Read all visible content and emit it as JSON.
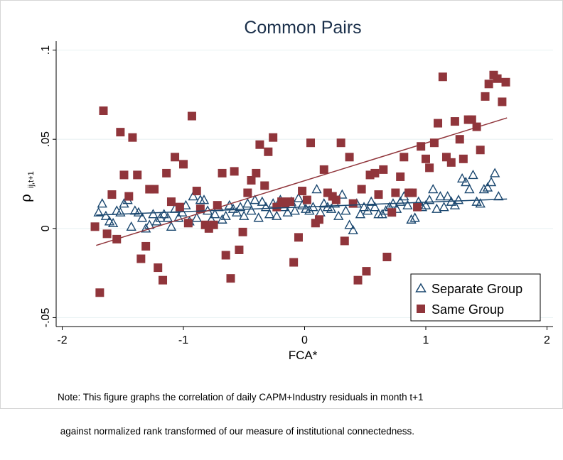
{
  "chart_data": {
    "type": "scatter",
    "title": "Common Pairs",
    "xlabel": "FCA*",
    "ylabel_main": "ρ",
    "ylabel_sub": "ij,t+1",
    "xlim": [
      -2.05,
      2.05
    ],
    "ylim": [
      -0.055,
      0.105
    ],
    "xticks": [
      "-2",
      "-1",
      "0",
      "1",
      "2"
    ],
    "xtick_values": [
      -2,
      -1,
      0,
      1,
      2
    ],
    "yticks": [
      ".1",
      ".05",
      "0",
      "-.05"
    ],
    "ytick_values": [
      0.1,
      0.05,
      0,
      -0.05
    ],
    "grid": true,
    "legend_placement": "bottom-right",
    "series": [
      {
        "name": "Separate Group",
        "marker": "triangle",
        "color": "#1a476f",
        "points": [
          [
            -1.7,
            0.009
          ],
          [
            -1.67,
            0.014
          ],
          [
            -1.64,
            0.007
          ],
          [
            -1.61,
            0.004
          ],
          [
            -1.58,
            0.003
          ],
          [
            -1.55,
            0.01
          ],
          [
            -1.52,
            0.009
          ],
          [
            -1.49,
            0.014
          ],
          [
            -1.46,
            0.016
          ],
          [
            -1.43,
            0.001
          ],
          [
            -1.4,
            0.01
          ],
          [
            -1.37,
            0.009
          ],
          [
            -1.34,
            0.006
          ],
          [
            -1.31,
            0.0
          ],
          [
            -1.28,
            0.002
          ],
          [
            -1.25,
            0.008
          ],
          [
            -1.22,
            0.004
          ],
          [
            -1.19,
            0.006
          ],
          [
            -1.16,
            0.008
          ],
          [
            -1.13,
            0.006
          ],
          [
            -1.1,
            0.001
          ],
          [
            -1.07,
            0.011
          ],
          [
            -1.04,
            0.006
          ],
          [
            -1.01,
            0.009
          ],
          [
            -0.98,
            0.013
          ],
          [
            -0.95,
            0.004
          ],
          [
            -0.92,
            0.018
          ],
          [
            -0.89,
            0.006
          ],
          [
            -0.86,
            0.016
          ],
          [
            -0.83,
            0.016
          ],
          [
            -0.8,
            0.01
          ],
          [
            -0.77,
            0.005
          ],
          [
            -0.74,
            0.008
          ],
          [
            -0.71,
            0.012
          ],
          [
            -0.68,
            0.005
          ],
          [
            -0.65,
            0.007
          ],
          [
            -0.62,
            0.013
          ],
          [
            -0.59,
            0.011
          ],
          [
            -0.56,
            0.009
          ],
          [
            -0.53,
            0.012
          ],
          [
            -0.5,
            0.007
          ],
          [
            -0.47,
            0.014
          ],
          [
            -0.44,
            0.01
          ],
          [
            -0.41,
            0.016
          ],
          [
            -0.38,
            0.006
          ],
          [
            -0.35,
            0.015
          ],
          [
            -0.32,
            0.012
          ],
          [
            -0.29,
            0.008
          ],
          [
            -0.26,
            0.014
          ],
          [
            -0.23,
            0.007
          ],
          [
            -0.2,
            0.016
          ],
          [
            -0.17,
            0.012
          ],
          [
            -0.14,
            0.009
          ],
          [
            -0.11,
            0.015
          ],
          [
            -0.08,
            0.01
          ],
          [
            -0.05,
            0.017
          ],
          [
            -0.02,
            0.013
          ],
          [
            0.01,
            0.011
          ],
          [
            0.04,
            0.01
          ],
          [
            0.07,
            0.012
          ],
          [
            0.1,
            0.022
          ],
          [
            0.13,
            0.009
          ],
          [
            0.16,
            0.014
          ],
          [
            0.19,
            0.012
          ],
          [
            0.22,
            0.011
          ],
          [
            0.25,
            0.014
          ],
          [
            0.28,
            0.007
          ],
          [
            0.31,
            0.019
          ],
          [
            0.34,
            0.01
          ],
          [
            0.37,
            0.002
          ],
          [
            0.4,
            -0.001
          ],
          [
            0.43,
            0.014
          ],
          [
            0.46,
            0.008
          ],
          [
            0.49,
            0.012
          ],
          [
            0.52,
            0.01
          ],
          [
            0.55,
            0.015
          ],
          [
            0.58,
            0.012
          ],
          [
            0.61,
            0.008
          ],
          [
            0.64,
            0.008
          ],
          [
            0.67,
            0.01
          ],
          [
            0.7,
            0.012
          ],
          [
            0.73,
            0.014
          ],
          [
            0.76,
            0.011
          ],
          [
            0.79,
            0.015
          ],
          [
            0.82,
            0.018
          ],
          [
            0.85,
            0.013
          ],
          [
            0.88,
            0.005
          ],
          [
            0.91,
            0.006
          ],
          [
            0.94,
            0.015
          ],
          [
            0.97,
            0.012
          ],
          [
            1.0,
            0.013
          ],
          [
            1.03,
            0.016
          ],
          [
            1.06,
            0.022
          ],
          [
            1.09,
            0.011
          ],
          [
            1.12,
            0.018
          ],
          [
            1.15,
            0.012
          ],
          [
            1.18,
            0.018
          ],
          [
            1.21,
            0.015
          ],
          [
            1.24,
            0.013
          ],
          [
            1.27,
            0.016
          ],
          [
            1.3,
            0.028
          ],
          [
            1.33,
            0.026
          ],
          [
            1.36,
            0.022
          ],
          [
            1.39,
            0.03
          ],
          [
            1.42,
            0.015
          ],
          [
            1.45,
            0.014
          ],
          [
            1.48,
            0.022
          ],
          [
            1.51,
            0.023
          ],
          [
            1.54,
            0.026
          ],
          [
            1.57,
            0.031
          ],
          [
            1.6,
            0.018
          ]
        ],
        "fit": [
          [
            -1.72,
            0.0075
          ],
          [
            1.67,
            0.0165
          ]
        ]
      },
      {
        "name": "Same Group",
        "marker": "square",
        "color": "#90353b",
        "points": [
          [
            -1.73,
            0.001
          ],
          [
            -1.69,
            -0.036
          ],
          [
            -1.66,
            0.066
          ],
          [
            -1.63,
            -0.003
          ],
          [
            -1.59,
            0.019
          ],
          [
            -1.55,
            -0.006
          ],
          [
            -1.52,
            0.054
          ],
          [
            -1.49,
            0.03
          ],
          [
            -1.45,
            0.018
          ],
          [
            -1.42,
            0.051
          ],
          [
            -1.38,
            0.03
          ],
          [
            -1.35,
            -0.017
          ],
          [
            -1.31,
            -0.01
          ],
          [
            -1.28,
            0.022
          ],
          [
            -1.24,
            0.022
          ],
          [
            -1.21,
            -0.022
          ],
          [
            -1.17,
            -0.029
          ],
          [
            -1.14,
            0.031
          ],
          [
            -1.1,
            0.015
          ],
          [
            -1.07,
            0.04
          ],
          [
            -1.03,
            0.012
          ],
          [
            -1.0,
            0.036
          ],
          [
            -0.96,
            0.003
          ],
          [
            -0.93,
            0.063
          ],
          [
            -0.89,
            0.021
          ],
          [
            -0.86,
            0.011
          ],
          [
            -0.82,
            0.002
          ],
          [
            -0.79,
            0.0
          ],
          [
            -0.75,
            0.002
          ],
          [
            -0.72,
            0.013
          ],
          [
            -0.68,
            0.031
          ],
          [
            -0.65,
            -0.015
          ],
          [
            -0.61,
            -0.028
          ],
          [
            -0.58,
            0.032
          ],
          [
            -0.54,
            -0.012
          ],
          [
            -0.51,
            -0.002
          ],
          [
            -0.47,
            0.02
          ],
          [
            -0.44,
            0.027
          ],
          [
            -0.4,
            0.031
          ],
          [
            -0.37,
            0.047
          ],
          [
            -0.33,
            0.024
          ],
          [
            -0.3,
            0.043
          ],
          [
            -0.26,
            0.051
          ],
          [
            -0.23,
            0.012
          ],
          [
            -0.19,
            0.015
          ],
          [
            -0.16,
            0.014
          ],
          [
            -0.12,
            0.015
          ],
          [
            -0.09,
            -0.019
          ],
          [
            -0.05,
            -0.005
          ],
          [
            -0.02,
            0.021
          ],
          [
            0.02,
            0.016
          ],
          [
            0.05,
            0.048
          ],
          [
            0.09,
            0.003
          ],
          [
            0.12,
            0.005
          ],
          [
            0.16,
            0.033
          ],
          [
            0.19,
            0.02
          ],
          [
            0.23,
            0.018
          ],
          [
            0.26,
            0.016
          ],
          [
            0.3,
            0.048
          ],
          [
            0.33,
            -0.007
          ],
          [
            0.37,
            0.04
          ],
          [
            0.4,
            0.014
          ],
          [
            0.44,
            -0.029
          ],
          [
            0.47,
            0.022
          ],
          [
            0.51,
            -0.024
          ],
          [
            0.54,
            0.03
          ],
          [
            0.58,
            0.031
          ],
          [
            0.61,
            0.019
          ],
          [
            0.65,
            0.033
          ],
          [
            0.68,
            -0.016
          ],
          [
            0.72,
            0.009
          ],
          [
            0.75,
            0.02
          ],
          [
            0.79,
            0.029
          ],
          [
            0.82,
            0.04
          ],
          [
            0.86,
            0.02
          ],
          [
            0.89,
            0.02
          ],
          [
            0.93,
            0.012
          ],
          [
            0.96,
            0.046
          ],
          [
            1.0,
            0.039
          ],
          [
            1.03,
            0.034
          ],
          [
            1.07,
            0.048
          ],
          [
            1.1,
            0.059
          ],
          [
            1.14,
            0.085
          ],
          [
            1.17,
            0.04
          ],
          [
            1.21,
            0.037
          ],
          [
            1.24,
            0.06
          ],
          [
            1.28,
            0.05
          ],
          [
            1.31,
            0.039
          ],
          [
            1.35,
            0.061
          ],
          [
            1.38,
            0.061
          ],
          [
            1.42,
            0.057
          ],
          [
            1.45,
            0.044
          ],
          [
            1.49,
            0.074
          ],
          [
            1.52,
            0.081
          ],
          [
            1.56,
            0.086
          ],
          [
            1.59,
            0.084
          ],
          [
            1.63,
            0.071
          ],
          [
            1.66,
            0.082
          ]
        ],
        "fit": [
          [
            -1.72,
            -0.0095
          ],
          [
            1.67,
            0.062
          ]
        ]
      }
    ]
  },
  "note_line1": "Note: This figure graphs the correlation of daily CAPM+Industry residuals in month t+1",
  "note_line2": " against normalized rank transformed of our measure of institutional connectedness."
}
